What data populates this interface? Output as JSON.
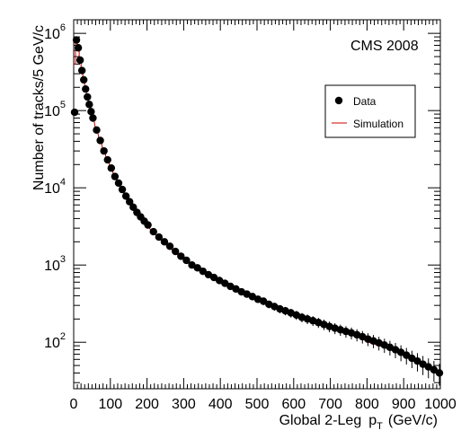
{
  "chart_data": {
    "type": "scatter",
    "title": "",
    "annotation": "CMS 2008",
    "xlabel": "Global 2-Leg",
    "xlabel_var": "p",
    "xlabel_sub": "T",
    "xlabel_unit": "(GeV/c)",
    "ylabel": "Number of tracks/5 GeV/c",
    "xlim": [
      0,
      1000
    ],
    "ylim": [
      25,
      1500000
    ],
    "yscale": "log",
    "x_ticks": [
      0,
      100,
      200,
      300,
      400,
      500,
      600,
      700,
      800,
      900,
      1000
    ],
    "x_tick_labels": [
      "0",
      "100",
      "200",
      "300",
      "400",
      "500",
      "600",
      "700",
      "800",
      "900",
      "1000"
    ],
    "y_ticks": [
      {
        "value": 100,
        "base": "10",
        "exp": "2"
      },
      {
        "value": 1000,
        "base": "10",
        "exp": "3"
      },
      {
        "value": 10000,
        "base": "10",
        "exp": "4"
      },
      {
        "value": 100000,
        "base": "10",
        "exp": "5"
      },
      {
        "value": 1000000,
        "base": "10",
        "exp": "6"
      }
    ],
    "legend_position": "top-right",
    "series": [
      {
        "name": "Data",
        "style": "markers",
        "color": "#000000",
        "x": [
          2.5,
          7.5,
          12.5,
          17.5,
          22.5,
          27.5,
          32.5,
          37.5,
          42.5,
          47.5,
          52.5,
          62.5,
          72.5,
          82.5,
          92.5,
          102.5,
          112.5,
          122.5,
          132.5,
          142.5,
          152.5,
          162.5,
          172.5,
          182.5,
          192.5,
          202.5,
          217.5,
          232.5,
          247.5,
          262.5,
          277.5,
          292.5,
          307.5,
          322.5,
          337.5,
          352.5,
          367.5,
          382.5,
          397.5,
          412.5,
          427.5,
          442.5,
          457.5,
          472.5,
          487.5,
          502.5,
          517.5,
          532.5,
          547.5,
          562.5,
          577.5,
          592.5,
          607.5,
          622.5,
          637.5,
          652.5,
          667.5,
          682.5,
          697.5,
          712.5,
          727.5,
          742.5,
          757.5,
          772.5,
          787.5,
          802.5,
          817.5,
          832.5,
          847.5,
          862.5,
          877.5,
          892.5,
          907.5,
          922.5,
          937.5,
          952.5,
          967.5,
          982.5,
          997.5
        ],
        "y": [
          95000,
          820000,
          650000,
          450000,
          330000,
          250000,
          190000,
          150000,
          120000,
          97000,
          80000,
          56000,
          41000,
          30000,
          23000,
          18000,
          14000,
          11500,
          9500,
          7800,
          6600,
          5600,
          4800,
          4200,
          3700,
          3300,
          2700,
          2300,
          2000,
          1750,
          1500,
          1300,
          1150,
          1000,
          920,
          830,
          750,
          690,
          630,
          580,
          530,
          490,
          450,
          420,
          390,
          360,
          340,
          310,
          290,
          270,
          255,
          240,
          225,
          210,
          200,
          190,
          180,
          170,
          160,
          152,
          145,
          138,
          132,
          125,
          118,
          110,
          104,
          98,
          92,
          86,
          80,
          74,
          68,
          62,
          57,
          52,
          48,
          44,
          40
        ]
      },
      {
        "name": "Simulation",
        "style": "step",
        "color": "#cc0000",
        "x": [
          2.5,
          7.5,
          12.5,
          17.5,
          22.5,
          27.5,
          32.5,
          37.5,
          42.5,
          47.5,
          52.5,
          62.5,
          72.5,
          82.5,
          92.5,
          102.5,
          112.5,
          122.5,
          132.5,
          142.5,
          152.5,
          162.5,
          172.5,
          182.5,
          192.5,
          202.5,
          217.5,
          232.5,
          247.5,
          262.5,
          277.5,
          292.5,
          307.5,
          322.5,
          337.5,
          352.5,
          367.5,
          382.5,
          397.5,
          412.5,
          427.5,
          442.5,
          457.5,
          472.5,
          487.5,
          502.5,
          517.5,
          532.5,
          547.5,
          562.5,
          577.5,
          592.5,
          607.5,
          622.5,
          637.5,
          652.5,
          667.5,
          682.5,
          697.5,
          712.5,
          727.5,
          742.5,
          757.5,
          772.5,
          787.5,
          802.5,
          817.5,
          832.5,
          847.5,
          862.5,
          877.5,
          892.5,
          907.5,
          922.5,
          937.5,
          952.5,
          967.5,
          982.5,
          997.5
        ],
        "y": [
          400000,
          830000,
          640000,
          440000,
          325000,
          248000,
          188000,
          148000,
          118000,
          95000,
          78000,
          55000,
          40000,
          29500,
          22500,
          17500,
          13600,
          11000,
          9000,
          7500,
          6300,
          5400,
          4600,
          4000,
          3500,
          3100,
          2600,
          2200,
          1850,
          1650,
          1400,
          1250,
          1100,
          950,
          880,
          790,
          700,
          660,
          600,
          550,
          500,
          470,
          430,
          400,
          370,
          345,
          320,
          300,
          275,
          260,
          240,
          230,
          215,
          200,
          190,
          180,
          170,
          160,
          150,
          145,
          138,
          130,
          125,
          118,
          110,
          100,
          95,
          90,
          85,
          80,
          75,
          70,
          65,
          60,
          55,
          50,
          45,
          42,
          38
        ]
      }
    ]
  }
}
